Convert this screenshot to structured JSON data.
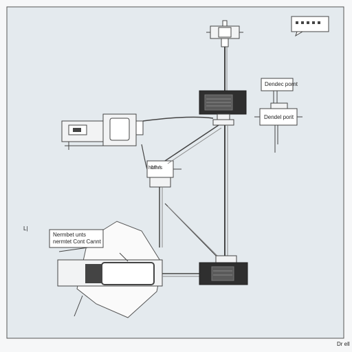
{
  "labels": {
    "device_top": "Dendec pornt",
    "device_second": "Dendel porit",
    "left_box_line1": "Nermbet unts",
    "left_box_line2": "nermtet Cont Cannt",
    "hub_text": "hlbflhrls",
    "left_margin": "L|",
    "bottom_right": "Dr ell",
    "speech_text": "▪▪▪▪"
  },
  "colors": {
    "canvas": "#e4eaee",
    "frame": "#555555",
    "device_dark": "#2f2f2f",
    "line": "#444444",
    "panel": "#f2f3f4"
  }
}
